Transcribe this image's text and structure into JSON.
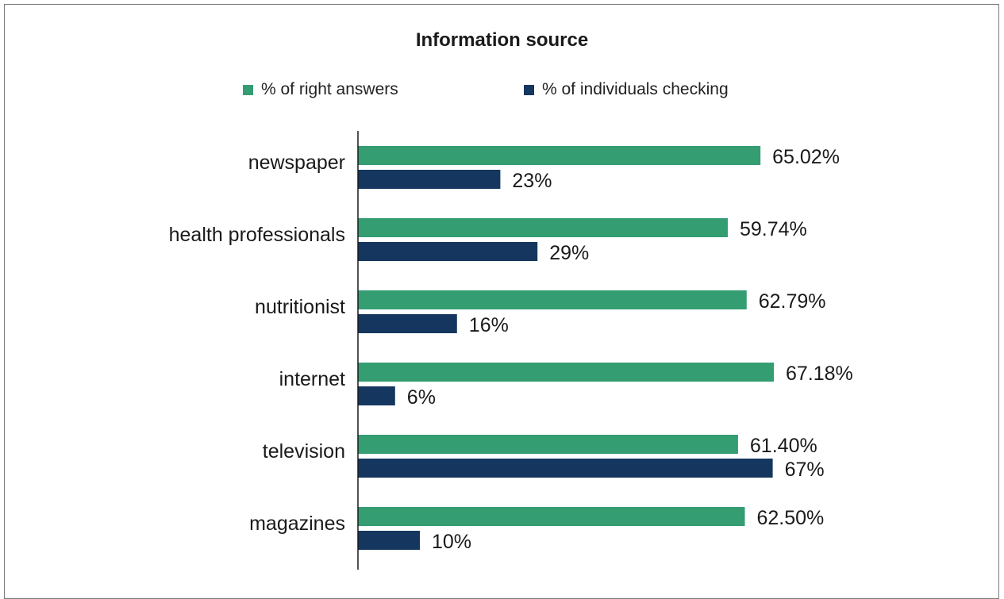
{
  "chart_data": {
    "type": "bar",
    "orientation": "horizontal",
    "title": "Information source",
    "categories": [
      "newspaper",
      "health professionals",
      "nutritionist",
      "internet",
      "television",
      "magazines"
    ],
    "series": [
      {
        "name": "% of right answers",
        "color": "#349d72",
        "values": [
          65.02,
          59.74,
          62.79,
          67.18,
          61.4,
          62.5
        ],
        "labels": [
          "65.02%",
          "59.74%",
          "62.79%",
          "67.18%",
          "61.40%",
          "62.50%"
        ]
      },
      {
        "name": "% of individuals checking",
        "color": "#15375f",
        "values": [
          23,
          29,
          16,
          6,
          67,
          10
        ],
        "labels": [
          "23%",
          "29%",
          "16%",
          "6%",
          "67%",
          "10%"
        ]
      }
    ],
    "xlim": [
      0,
      67.18
    ],
    "legend": "top",
    "grid": false
  }
}
